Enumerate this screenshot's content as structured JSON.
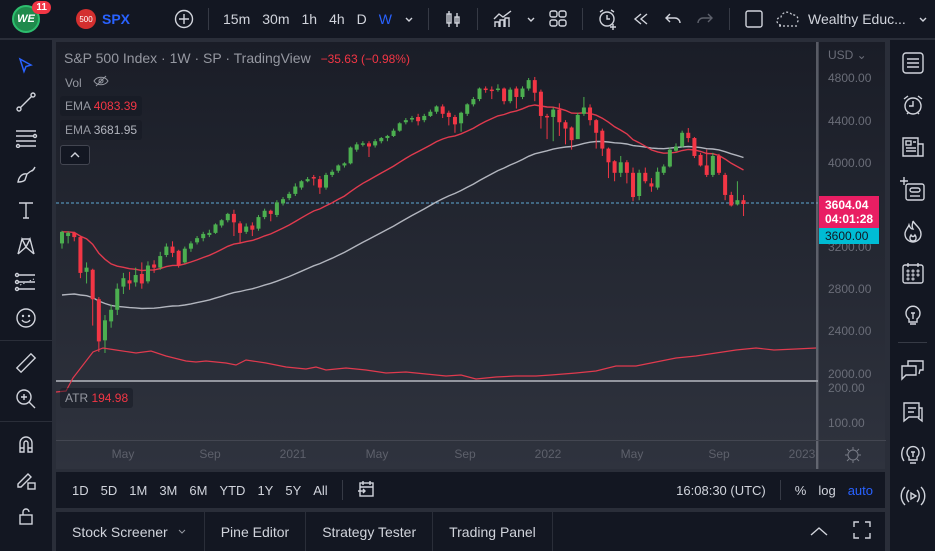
{
  "topbar": {
    "notification_count": "11",
    "logo_text": "WE",
    "symbol_badge": "500",
    "symbol": "SPX",
    "intervals": [
      "15m",
      "30m",
      "1h",
      "4h",
      "D",
      "W"
    ],
    "active_interval": "W",
    "layout_name": "Wealthy Educ..."
  },
  "legend": {
    "title": "S&P 500 Index · 1W · SP   · TradingView",
    "change": "−35.63 (−0.98%)",
    "vol_label": "Vol",
    "ema1_label": "EMA",
    "ema1_value": "4083.39",
    "ema2_label": "EMA",
    "ema2_value": "3681.95"
  },
  "atr": {
    "label": "ATR",
    "value": "194.98"
  },
  "price_axis": {
    "currency": "USD",
    "labels": [
      "4800.00",
      "4400.00",
      "4000.00",
      "3200.00",
      "2800.00",
      "2400.00",
      "2000.00"
    ],
    "last_price": "3604.04",
    "countdown": "04:01:28",
    "crosshair_price": "3600.00",
    "atr_labels": [
      "200.00",
      "100.00"
    ]
  },
  "time_axis": {
    "labels": [
      "May",
      "Sep",
      "2021",
      "May",
      "Sep",
      "2022",
      "May",
      "Sep",
      "2023"
    ]
  },
  "colors": {
    "up": "#26a69a",
    "up_green": "#4caf50",
    "down": "#f23645",
    "ema_fast": "#e03a4e",
    "ema_slow": "#b2b5be",
    "accent": "#2962ff",
    "tag_last": "#e91e63",
    "tag_cross": "#00bcd4"
  },
  "range_bar": {
    "ranges": [
      "1D",
      "5D",
      "1M",
      "3M",
      "6M",
      "YTD",
      "1Y",
      "5Y",
      "All"
    ],
    "clock": "16:08:30 (UTC)",
    "pct": "%",
    "log": "log",
    "auto": "auto"
  },
  "panels": {
    "tabs": [
      "Stock Screener",
      "Pine Editor",
      "Strategy Tester",
      "Trading Panel"
    ]
  },
  "chart_data": {
    "type": "candlestick",
    "title": "S&P 500 Index · 1W",
    "ylim": [
      2000,
      4900
    ],
    "ema_fast_last": 4083.39,
    "ema_slow_last": 3681.95,
    "atr_last": 194.98,
    "candles": [
      [
        3230,
        3340,
        3180,
        3350
      ],
      [
        3300,
        3330,
        3230,
        3345
      ],
      [
        3330,
        3290,
        3250,
        3340
      ],
      [
        3290,
        2950,
        2900,
        3300
      ],
      [
        2960,
        3000,
        2850,
        3050
      ],
      [
        2980,
        2700,
        2450,
        2990
      ],
      [
        2700,
        2300,
        2200,
        2720
      ],
      [
        2310,
        2500,
        2190,
        2550
      ],
      [
        2490,
        2600,
        2430,
        2650
      ],
      [
        2600,
        2800,
        2550,
        2850
      ],
      [
        2820,
        2900,
        2750,
        2950
      ],
      [
        2880,
        2850,
        2790,
        2960
      ],
      [
        2860,
        2930,
        2820,
        3000
      ],
      [
        2940,
        2850,
        2800,
        3050
      ],
      [
        2870,
        3020,
        2850,
        3060
      ],
      [
        3030,
        3000,
        2950,
        3070
      ],
      [
        3000,
        3110,
        2980,
        3150
      ],
      [
        3120,
        3200,
        3100,
        3230
      ],
      [
        3200,
        3140,
        3100,
        3250
      ],
      [
        3160,
        3020,
        3000,
        3170
      ],
      [
        3050,
        3180,
        3040,
        3200
      ],
      [
        3180,
        3230,
        3150,
        3250
      ],
      [
        3240,
        3280,
        3220,
        3300
      ],
      [
        3280,
        3320,
        3250,
        3340
      ],
      [
        3310,
        3330,
        3290,
        3360
      ],
      [
        3330,
        3410,
        3320,
        3420
      ],
      [
        3400,
        3450,
        3380,
        3460
      ],
      [
        3450,
        3510,
        3430,
        3520
      ],
      [
        3510,
        3430,
        3300,
        3550
      ],
      [
        3420,
        3330,
        3230,
        3440
      ],
      [
        3340,
        3390,
        3320,
        3420
      ],
      [
        3400,
        3360,
        3300,
        3430
      ],
      [
        3370,
        3480,
        3350,
        3500
      ],
      [
        3480,
        3540,
        3460,
        3560
      ],
      [
        3540,
        3510,
        3440,
        3550
      ],
      [
        3500,
        3620,
        3480,
        3640
      ],
      [
        3610,
        3650,
        3590,
        3670
      ],
      [
        3660,
        3700,
        3640,
        3720
      ],
      [
        3700,
        3770,
        3680,
        3800
      ],
      [
        3760,
        3820,
        3740,
        3830
      ],
      [
        3820,
        3840,
        3810,
        3860
      ],
      [
        3860,
        3850,
        3780,
        3880
      ],
      [
        3840,
        3760,
        3700,
        3870
      ],
      [
        3760,
        3880,
        3740,
        3900
      ],
      [
        3880,
        3910,
        3860,
        3930
      ],
      [
        3920,
        3970,
        3900,
        3980
      ],
      [
        3970,
        3990,
        3950,
        4000
      ],
      [
        3990,
        4140,
        3980,
        4150
      ],
      [
        4120,
        4170,
        4100,
        4190
      ],
      [
        4170,
        4180,
        4150,
        4200
      ],
      [
        4180,
        4150,
        4050,
        4200
      ],
      [
        4160,
        4200,
        4140,
        4220
      ],
      [
        4200,
        4230,
        4180,
        4240
      ],
      [
        4230,
        4250,
        4200,
        4260
      ],
      [
        4250,
        4300,
        4240,
        4320
      ],
      [
        4300,
        4370,
        4290,
        4380
      ],
      [
        4380,
        4400,
        4360,
        4420
      ],
      [
        4410,
        4420,
        4380,
        4440
      ],
      [
        4430,
        4390,
        4350,
        4460
      ],
      [
        4400,
        4440,
        4380,
        4460
      ],
      [
        4440,
        4480,
        4430,
        4500
      ],
      [
        4480,
        4530,
        4460,
        4540
      ],
      [
        4530,
        4460,
        4420,
        4550
      ],
      [
        4470,
        4430,
        4350,
        4490
      ],
      [
        4430,
        4360,
        4280,
        4450
      ],
      [
        4370,
        4470,
        4290,
        4480
      ],
      [
        4460,
        4550,
        4440,
        4560
      ],
      [
        4550,
        4600,
        4530,
        4620
      ],
      [
        4600,
        4700,
        4580,
        4710
      ],
      [
        4700,
        4690,
        4660,
        4720
      ],
      [
        4690,
        4680,
        4600,
        4720
      ],
      [
        4690,
        4700,
        4670,
        4740
      ],
      [
        4700,
        4580,
        4550,
        4710
      ],
      [
        4580,
        4690,
        4560,
        4710
      ],
      [
        4700,
        4620,
        4510,
        4720
      ],
      [
        4620,
        4700,
        4600,
        4720
      ],
      [
        4700,
        4780,
        4680,
        4800
      ],
      [
        4780,
        4660,
        4580,
        4810
      ],
      [
        4670,
        4440,
        4320,
        4690
      ],
      [
        4440,
        4430,
        4220,
        4460
      ],
      [
        4430,
        4500,
        4200,
        4520
      ],
      [
        4500,
        4380,
        4250,
        4560
      ],
      [
        4380,
        4320,
        4170,
        4400
      ],
      [
        4330,
        4210,
        4120,
        4340
      ],
      [
        4220,
        4450,
        4400,
        4470
      ],
      [
        4460,
        4520,
        4440,
        4620
      ],
      [
        4520,
        4400,
        4350,
        4550
      ],
      [
        4400,
        4280,
        4130,
        4410
      ],
      [
        4300,
        4130,
        4060,
        4320
      ],
      [
        4130,
        4000,
        3850,
        4140
      ],
      [
        4010,
        3900,
        3820,
        4020
      ],
      [
        3900,
        4000,
        3860,
        4060
      ],
      [
        4000,
        3900,
        3800,
        4020
      ],
      [
        3900,
        3670,
        3630,
        3950
      ],
      [
        3680,
        3900,
        3640,
        3930
      ],
      [
        3900,
        3820,
        3800,
        3950
      ],
      [
        3800,
        3770,
        3720,
        3850
      ],
      [
        3760,
        3910,
        3740,
        3950
      ],
      [
        3900,
        3960,
        3880,
        3980
      ],
      [
        3960,
        4120,
        3950,
        4140
      ],
      [
        4110,
        4150,
        4100,
        4180
      ],
      [
        4150,
        4280,
        4140,
        4300
      ],
      [
        4280,
        4230,
        4190,
        4325
      ],
      [
        4230,
        4060,
        4040,
        4240
      ],
      [
        4070,
        3970,
        3960,
        4090
      ],
      [
        3970,
        3880,
        3860,
        4120
      ],
      [
        3880,
        4060,
        3860,
        4090
      ],
      [
        4060,
        3900,
        3880,
        4080
      ],
      [
        3880,
        3690,
        3640,
        3900
      ],
      [
        3690,
        3590,
        3580,
        3720
      ],
      [
        3600,
        3640,
        3590,
        3820
      ],
      [
        3640,
        3604,
        3490,
        3690
      ]
    ]
  }
}
